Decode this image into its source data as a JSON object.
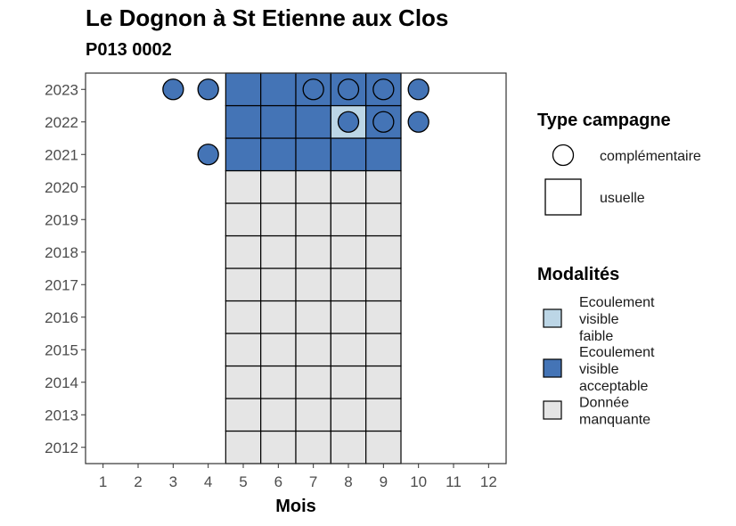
{
  "chart_data": {
    "type": "heatmap",
    "title": "Le Dognon à St Etienne aux Clos",
    "subtitle": "P013 0002",
    "xlabel": "Mois",
    "ylabel": "",
    "x_ticks": [
      "1",
      "2",
      "3",
      "4",
      "5",
      "6",
      "7",
      "8",
      "9",
      "10",
      "11",
      "12"
    ],
    "y_ticks": [
      "2012",
      "2013",
      "2014",
      "2015",
      "2016",
      "2017",
      "2018",
      "2019",
      "2020",
      "2021",
      "2022",
      "2023"
    ],
    "xlim": [
      0.5,
      12.5
    ],
    "ylim": [
      2011.5,
      2023.5
    ],
    "legend_campaign": {
      "title": "Type campagne",
      "items": [
        {
          "key": "complementaire",
          "label": "complémentaire",
          "shape": "circle"
        },
        {
          "key": "usuelle",
          "label": "usuelle",
          "shape": "square"
        }
      ]
    },
    "legend_modalites": {
      "title": "Modalités",
      "items": [
        {
          "key": "faible",
          "label_lines": [
            "Ecoulement",
            "visible",
            "faible"
          ],
          "color": "#bcd6e6"
        },
        {
          "key": "acceptable",
          "label_lines": [
            "Ecoulement",
            "visible",
            "acceptable"
          ],
          "color": "#4474b6"
        },
        {
          "key": "manquante",
          "label_lines": [
            "Donnée",
            "manquante"
          ],
          "color": "#e5e5e5"
        }
      ]
    },
    "tiles": [
      {
        "year": 2012,
        "month": 5,
        "mod": "manquante"
      },
      {
        "year": 2012,
        "month": 6,
        "mod": "manquante"
      },
      {
        "year": 2012,
        "month": 7,
        "mod": "manquante"
      },
      {
        "year": 2012,
        "month": 8,
        "mod": "manquante"
      },
      {
        "year": 2012,
        "month": 9,
        "mod": "manquante"
      },
      {
        "year": 2013,
        "month": 5,
        "mod": "manquante"
      },
      {
        "year": 2013,
        "month": 6,
        "mod": "manquante"
      },
      {
        "year": 2013,
        "month": 7,
        "mod": "manquante"
      },
      {
        "year": 2013,
        "month": 8,
        "mod": "manquante"
      },
      {
        "year": 2013,
        "month": 9,
        "mod": "manquante"
      },
      {
        "year": 2014,
        "month": 5,
        "mod": "manquante"
      },
      {
        "year": 2014,
        "month": 6,
        "mod": "manquante"
      },
      {
        "year": 2014,
        "month": 7,
        "mod": "manquante"
      },
      {
        "year": 2014,
        "month": 8,
        "mod": "manquante"
      },
      {
        "year": 2014,
        "month": 9,
        "mod": "manquante"
      },
      {
        "year": 2015,
        "month": 5,
        "mod": "manquante"
      },
      {
        "year": 2015,
        "month": 6,
        "mod": "manquante"
      },
      {
        "year": 2015,
        "month": 7,
        "mod": "manquante"
      },
      {
        "year": 2015,
        "month": 8,
        "mod": "manquante"
      },
      {
        "year": 2015,
        "month": 9,
        "mod": "manquante"
      },
      {
        "year": 2016,
        "month": 5,
        "mod": "manquante"
      },
      {
        "year": 2016,
        "month": 6,
        "mod": "manquante"
      },
      {
        "year": 2016,
        "month": 7,
        "mod": "manquante"
      },
      {
        "year": 2016,
        "month": 8,
        "mod": "manquante"
      },
      {
        "year": 2016,
        "month": 9,
        "mod": "manquante"
      },
      {
        "year": 2017,
        "month": 5,
        "mod": "manquante"
      },
      {
        "year": 2017,
        "month": 6,
        "mod": "manquante"
      },
      {
        "year": 2017,
        "month": 7,
        "mod": "manquante"
      },
      {
        "year": 2017,
        "month": 8,
        "mod": "manquante"
      },
      {
        "year": 2017,
        "month": 9,
        "mod": "manquante"
      },
      {
        "year": 2018,
        "month": 5,
        "mod": "manquante"
      },
      {
        "year": 2018,
        "month": 6,
        "mod": "manquante"
      },
      {
        "year": 2018,
        "month": 7,
        "mod": "manquante"
      },
      {
        "year": 2018,
        "month": 8,
        "mod": "manquante"
      },
      {
        "year": 2018,
        "month": 9,
        "mod": "manquante"
      },
      {
        "year": 2019,
        "month": 5,
        "mod": "manquante"
      },
      {
        "year": 2019,
        "month": 6,
        "mod": "manquante"
      },
      {
        "year": 2019,
        "month": 7,
        "mod": "manquante"
      },
      {
        "year": 2019,
        "month": 8,
        "mod": "manquante"
      },
      {
        "year": 2019,
        "month": 9,
        "mod": "manquante"
      },
      {
        "year": 2020,
        "month": 5,
        "mod": "manquante"
      },
      {
        "year": 2020,
        "month": 6,
        "mod": "manquante"
      },
      {
        "year": 2020,
        "month": 7,
        "mod": "manquante"
      },
      {
        "year": 2020,
        "month": 8,
        "mod": "manquante"
      },
      {
        "year": 2020,
        "month": 9,
        "mod": "manquante"
      },
      {
        "year": 2021,
        "month": 5,
        "mod": "acceptable"
      },
      {
        "year": 2021,
        "month": 6,
        "mod": "acceptable"
      },
      {
        "year": 2021,
        "month": 7,
        "mod": "acceptable"
      },
      {
        "year": 2021,
        "month": 8,
        "mod": "acceptable"
      },
      {
        "year": 2021,
        "month": 9,
        "mod": "acceptable"
      },
      {
        "year": 2022,
        "month": 5,
        "mod": "acceptable"
      },
      {
        "year": 2022,
        "month": 6,
        "mod": "acceptable"
      },
      {
        "year": 2022,
        "month": 7,
        "mod": "acceptable"
      },
      {
        "year": 2022,
        "month": 8,
        "mod": "faible"
      },
      {
        "year": 2022,
        "month": 9,
        "mod": "acceptable"
      },
      {
        "year": 2023,
        "month": 5,
        "mod": "acceptable"
      },
      {
        "year": 2023,
        "month": 6,
        "mod": "acceptable"
      },
      {
        "year": 2023,
        "month": 7,
        "mod": "acceptable"
      },
      {
        "year": 2023,
        "month": 8,
        "mod": "acceptable"
      },
      {
        "year": 2023,
        "month": 9,
        "mod": "acceptable"
      }
    ],
    "points": [
      {
        "year": 2023,
        "month": 3,
        "mod": "acceptable"
      },
      {
        "year": 2023,
        "month": 4,
        "mod": "acceptable"
      },
      {
        "year": 2023,
        "month": 7,
        "mod": "acceptable"
      },
      {
        "year": 2023,
        "month": 8,
        "mod": "acceptable"
      },
      {
        "year": 2023,
        "month": 9,
        "mod": "acceptable"
      },
      {
        "year": 2023,
        "month": 10,
        "mod": "acceptable"
      },
      {
        "year": 2022,
        "month": 8,
        "mod": "acceptable"
      },
      {
        "year": 2022,
        "month": 9,
        "mod": "acceptable"
      },
      {
        "year": 2022,
        "month": 10,
        "mod": "acceptable"
      },
      {
        "year": 2021,
        "month": 4,
        "mod": "acceptable"
      }
    ],
    "grid": false,
    "legend_position": "right"
  }
}
